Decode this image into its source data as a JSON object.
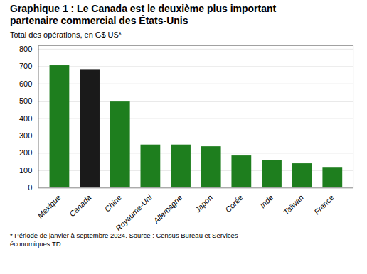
{
  "chart_data": {
    "type": "bar",
    "title": "Graphique 1 : Le Canada est le deuxième plus important\npartenaire commercial des États-Unis",
    "subtitle": "Total des opérations, en G$ US*",
    "footnote": "* Période de janvier à septembre 2024. Source : Census Bureau et Services\néconomiques TD.",
    "categories": [
      "Mexique",
      "Canada",
      "Chine",
      "Royaume-Uni",
      "Allemagne",
      "Japon",
      "Corée",
      "Inde",
      "Taïwan",
      "France"
    ],
    "values": [
      705,
      683,
      500,
      248,
      248,
      238,
      185,
      160,
      140,
      119
    ],
    "colors": [
      "#1e7e1e",
      "#1a1a1a",
      "#1e7e1e",
      "#1e7e1e",
      "#1e7e1e",
      "#1e7e1e",
      "#1e7e1e",
      "#1e7e1e",
      "#1e7e1e",
      "#1e7e1e"
    ],
    "ylim": [
      0,
      820
    ],
    "yticks": [
      0,
      100,
      200,
      300,
      400,
      500,
      600,
      700,
      800
    ],
    "grid": true
  }
}
